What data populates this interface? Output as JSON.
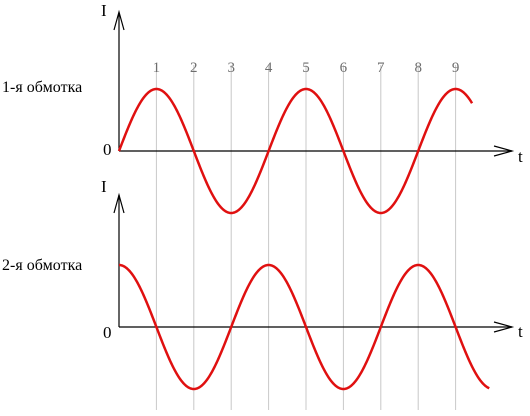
{
  "chart_data": [
    {
      "type": "line",
      "title": "1-я обмотка",
      "ylabel": "I",
      "xlabel": "t",
      "origin_label": "0",
      "tick_labels": [
        "1",
        "2",
        "3",
        "4",
        "5",
        "6",
        "7",
        "8",
        "9"
      ],
      "series": [
        {
          "curve": "sine",
          "amplitude": 1,
          "phase_deg": 0,
          "x_start_tick": 0,
          "x_end_tick": 9.45
        }
      ]
    },
    {
      "type": "line",
      "title": "2-я обмотка",
      "ylabel": "I",
      "xlabel": "t",
      "origin_label": "0",
      "series": [
        {
          "curve": "cosine",
          "amplitude": 1,
          "phase_deg": 90,
          "x_start_tick": 0,
          "x_end_tick": 9.9
        }
      ]
    }
  ],
  "colors": {
    "curve": "#e01010",
    "axis": "#000000",
    "gridline": "#c8c8c8",
    "tick_label": "#6e6e6e"
  }
}
